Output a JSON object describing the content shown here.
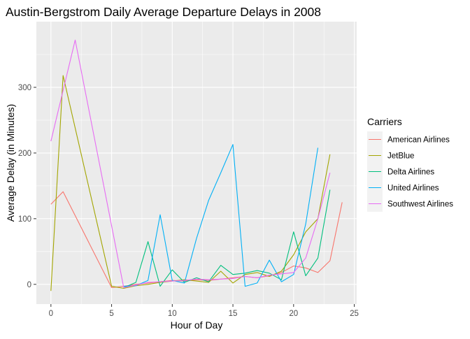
{
  "chart_data": {
    "type": "line",
    "title": "Austin-Bergstrom Daily Average Departure Delays in 2008",
    "xlabel": "Hour of Day",
    "ylabel": "Average Delay (in Minutes)",
    "xlim": [
      -1.2,
      25.2
    ],
    "ylim": [
      -30,
      400
    ],
    "xticks": [
      0,
      5,
      10,
      15,
      20,
      25
    ],
    "yticks": [
      0,
      100,
      200,
      300
    ],
    "grid": true,
    "legend": {
      "title": "Carriers",
      "position": "right"
    },
    "series": [
      {
        "name": "American Airlines",
        "color": "#F8766D",
        "x": [
          0,
          1,
          5,
          6,
          7,
          8,
          9,
          10,
          11,
          12,
          13,
          14,
          15,
          16,
          17,
          18,
          19,
          20,
          21,
          22,
          23,
          24
        ],
        "y": [
          122,
          141,
          -5,
          -3,
          0,
          2,
          4,
          6,
          5,
          7,
          6,
          8,
          10,
          12,
          10,
          13,
          18,
          28,
          25,
          18,
          36,
          125
        ]
      },
      {
        "name": "JetBlue",
        "color": "#A3A500",
        "x": [
          0,
          1,
          5,
          6,
          7,
          8,
          9,
          10,
          11,
          12,
          13,
          14,
          15,
          16,
          17,
          18,
          19,
          20,
          21,
          22,
          23
        ],
        "y": [
          -10,
          318,
          -3,
          -6,
          -2,
          0,
          3,
          5,
          7,
          5,
          3,
          20,
          2,
          15,
          18,
          12,
          20,
          45,
          80,
          100,
          198
        ]
      },
      {
        "name": "Delta Airlines",
        "color": "#00BF7D",
        "x": [
          6,
          7,
          8,
          9,
          10,
          11,
          12,
          13,
          14,
          15,
          16,
          17,
          18,
          19,
          20,
          21,
          22,
          23
        ],
        "y": [
          -5,
          3,
          65,
          -3,
          22,
          3,
          10,
          4,
          29,
          15,
          17,
          21,
          17,
          7,
          80,
          13,
          40,
          144
        ]
      },
      {
        "name": "United Airlines",
        "color": "#00B0F6",
        "x": [
          6,
          7,
          8,
          9,
          10,
          11,
          12,
          13,
          14,
          15,
          16,
          17,
          18,
          19,
          20,
          21,
          22
        ],
        "y": [
          -3,
          -2,
          6,
          106,
          6,
          2,
          70,
          128,
          170,
          213,
          -3,
          2,
          37,
          4,
          15,
          92,
          208
        ]
      },
      {
        "name": "Southwest Airlines",
        "color": "#E76BF3",
        "x": [
          0,
          2,
          6,
          7,
          8,
          9,
          10,
          11,
          12,
          13,
          14,
          15,
          16,
          17,
          18,
          19,
          20,
          21,
          22,
          23
        ],
        "y": [
          218,
          372,
          -5,
          -1,
          3,
          4,
          5,
          6,
          8,
          7,
          8,
          9,
          12,
          10,
          14,
          16,
          18,
          40,
          100,
          170
        ]
      }
    ]
  }
}
